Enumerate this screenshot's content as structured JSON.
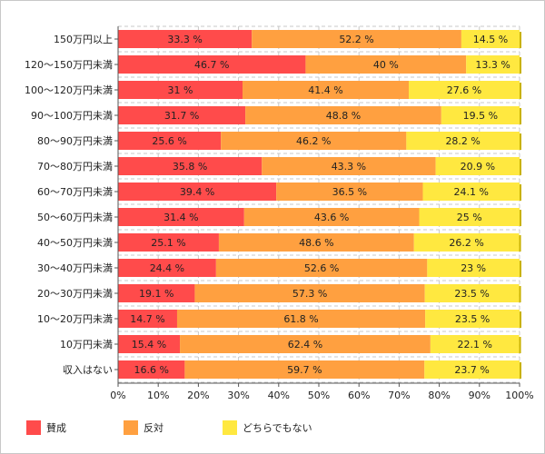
{
  "chart_data": {
    "type": "bar",
    "orientation": "horizontal",
    "stacked": true,
    "categories": [
      "150万円以上",
      "120～150万円未満",
      "100～120万円未満",
      "90～100万円未満",
      "80～90万円未満",
      "70～80万円未満",
      "60～70万円未満",
      "50～60万円未満",
      "40～50万円未満",
      "30～40万円未満",
      "20～30万円未満",
      "10～20万円未満",
      "10万円未満",
      "収入はない"
    ],
    "series": [
      {
        "name": "賛成",
        "color": "#ff4b4b",
        "values": [
          33.3,
          46.7,
          31,
          31.7,
          25.6,
          35.8,
          39.4,
          31.4,
          25.1,
          24.4,
          19.1,
          14.7,
          15.4,
          16.6
        ],
        "labels": [
          "33.3 %",
          "46.7 %",
          "31 %",
          "31.7 %",
          "25.6 %",
          "35.8 %",
          "39.4 %",
          "31.4 %",
          "25.1 %",
          "24.4 %",
          "19.1 %",
          "14.7 %",
          "15.4 %",
          "16.6 %"
        ]
      },
      {
        "name": "反対",
        "color": "#ffa040",
        "values": [
          52.2,
          40,
          41.4,
          48.8,
          46.2,
          43.3,
          36.5,
          43.6,
          48.6,
          52.6,
          57.3,
          61.8,
          62.4,
          59.7
        ],
        "labels": [
          "52.2 %",
          "40 %",
          "41.4 %",
          "48.8 %",
          "46.2 %",
          "43.3 %",
          "36.5 %",
          "43.6 %",
          "48.6 %",
          "52.6 %",
          "57.3 %",
          "61.8 %",
          "62.4 %",
          "59.7 %"
        ]
      },
      {
        "name": "どちらでもない",
        "color": "#ffe840",
        "values": [
          14.5,
          13.3,
          27.6,
          19.5,
          28.2,
          20.9,
          24.1,
          25,
          26.2,
          23,
          23.5,
          23.5,
          22.1,
          23.7
        ],
        "labels": [
          "14.5 %",
          "13.3 %",
          "27.6 %",
          "19.5 %",
          "28.2 %",
          "20.9 %",
          "24.1 %",
          "25 %",
          "26.2 %",
          "23 %",
          "23.5 %",
          "23.5 %",
          "22.1 %",
          "23.7 %"
        ]
      }
    ],
    "xlim": [
      0,
      100
    ],
    "xticks": [
      "0%",
      "10%",
      "20%",
      "30%",
      "40%",
      "50%",
      "60%",
      "70%",
      "80%",
      "90%",
      "100%"
    ],
    "grid": true,
    "legend_position": "bottom"
  }
}
